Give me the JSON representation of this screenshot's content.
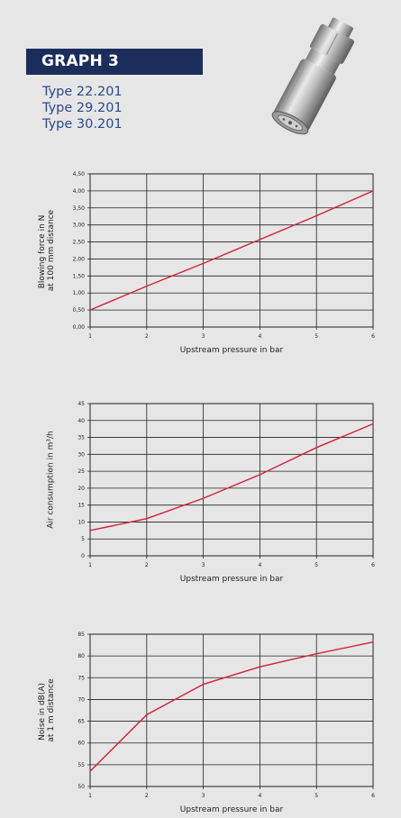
{
  "header": {
    "title": "GRAPH 3"
  },
  "types": [
    "Type 22.201",
    "Type 29.201",
    "Type 30.201"
  ],
  "colors": {
    "header_bg": "#1b2e5b",
    "type_text": "#2a4a8a",
    "line": "#d2203a",
    "grid": "#222222"
  },
  "image": {
    "icon": "nozzle-image"
  },
  "chart_data": [
    {
      "type": "line",
      "x": [
        1,
        2,
        3,
        4,
        5,
        6
      ],
      "y": [
        0.5,
        1.2,
        1.87,
        2.57,
        3.27,
        4.0
      ],
      "xlim": [
        1,
        6
      ],
      "ylim": [
        0,
        4.5
      ],
      "yticks": [
        "0,00",
        "0,50",
        "1,00",
        "1,50",
        "2,00",
        "2,50",
        "3,00",
        "3,50",
        "4,00",
        "4,50"
      ],
      "xticks": [
        "1",
        "2",
        "3",
        "4",
        "5",
        "6"
      ],
      "ylabel_lines": [
        "Blowing force in N",
        "at 100 mm distance"
      ],
      "xlabel": "Upstream pressure in bar",
      "grid": true
    },
    {
      "type": "line",
      "x": [
        1,
        2,
        3,
        4,
        5,
        6
      ],
      "y": [
        7.5,
        11,
        17,
        24,
        32,
        39
      ],
      "xlim": [
        1,
        6
      ],
      "ylim": [
        0,
        45
      ],
      "yticks": [
        "0",
        "5",
        "10",
        "15",
        "20",
        "25",
        "30",
        "35",
        "40",
        "45"
      ],
      "xticks": [
        "1",
        "2",
        "3",
        "4",
        "5",
        "6"
      ],
      "ylabel_lines": [
        "Air consumption in m³/h"
      ],
      "xlabel": "Upstream pressure in bar",
      "grid": true
    },
    {
      "type": "line",
      "x": [
        1,
        2,
        3,
        4,
        5,
        6
      ],
      "y": [
        53.5,
        66.5,
        73.5,
        77.5,
        80.5,
        83.2
      ],
      "xlim": [
        1,
        6
      ],
      "ylim": [
        50,
        85
      ],
      "yticks": [
        "50",
        "55",
        "60",
        "65",
        "70",
        "75",
        "80",
        "85"
      ],
      "xticks": [
        "1",
        "2",
        "3",
        "4",
        "5",
        "6"
      ],
      "ylabel_lines": [
        "Noise in dB(A)",
        "at 1 m distance"
      ],
      "xlabel": "Upstream pressure in bar",
      "grid": true
    }
  ]
}
